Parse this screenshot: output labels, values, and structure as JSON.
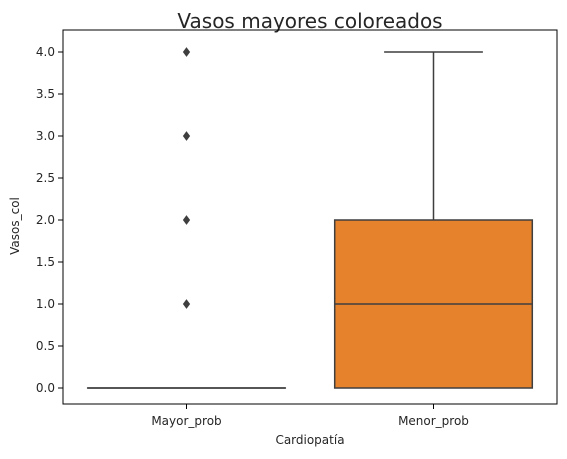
{
  "chart_data": {
    "type": "box",
    "title": "Vasos mayores coloreados",
    "xlabel": "Cardiopatía",
    "ylabel": "Vasos_col",
    "categories": [
      "Mayor_prob",
      "Menor_prob"
    ],
    "ylim": [
      -0.1,
      4.2
    ],
    "yticks": [
      "0.0",
      "0.5",
      "1.0",
      "1.5",
      "2.0",
      "2.5",
      "3.0",
      "3.5",
      "4.0"
    ],
    "grid": false,
    "boxes": [
      {
        "category": "Mayor_prob",
        "whisker_low": 0,
        "q1": 0,
        "median": 0,
        "q3": 0,
        "whisker_high": 0,
        "outliers": [
          1,
          2,
          3,
          4
        ],
        "color": "#2f6fa8"
      },
      {
        "category": "Menor_prob",
        "whisker_low": 0,
        "q1": 0,
        "median": 1,
        "q3": 2,
        "whisker_high": 4,
        "outliers": [],
        "color": "#e6812c"
      }
    ],
    "line_color": "#3f3f3f"
  }
}
